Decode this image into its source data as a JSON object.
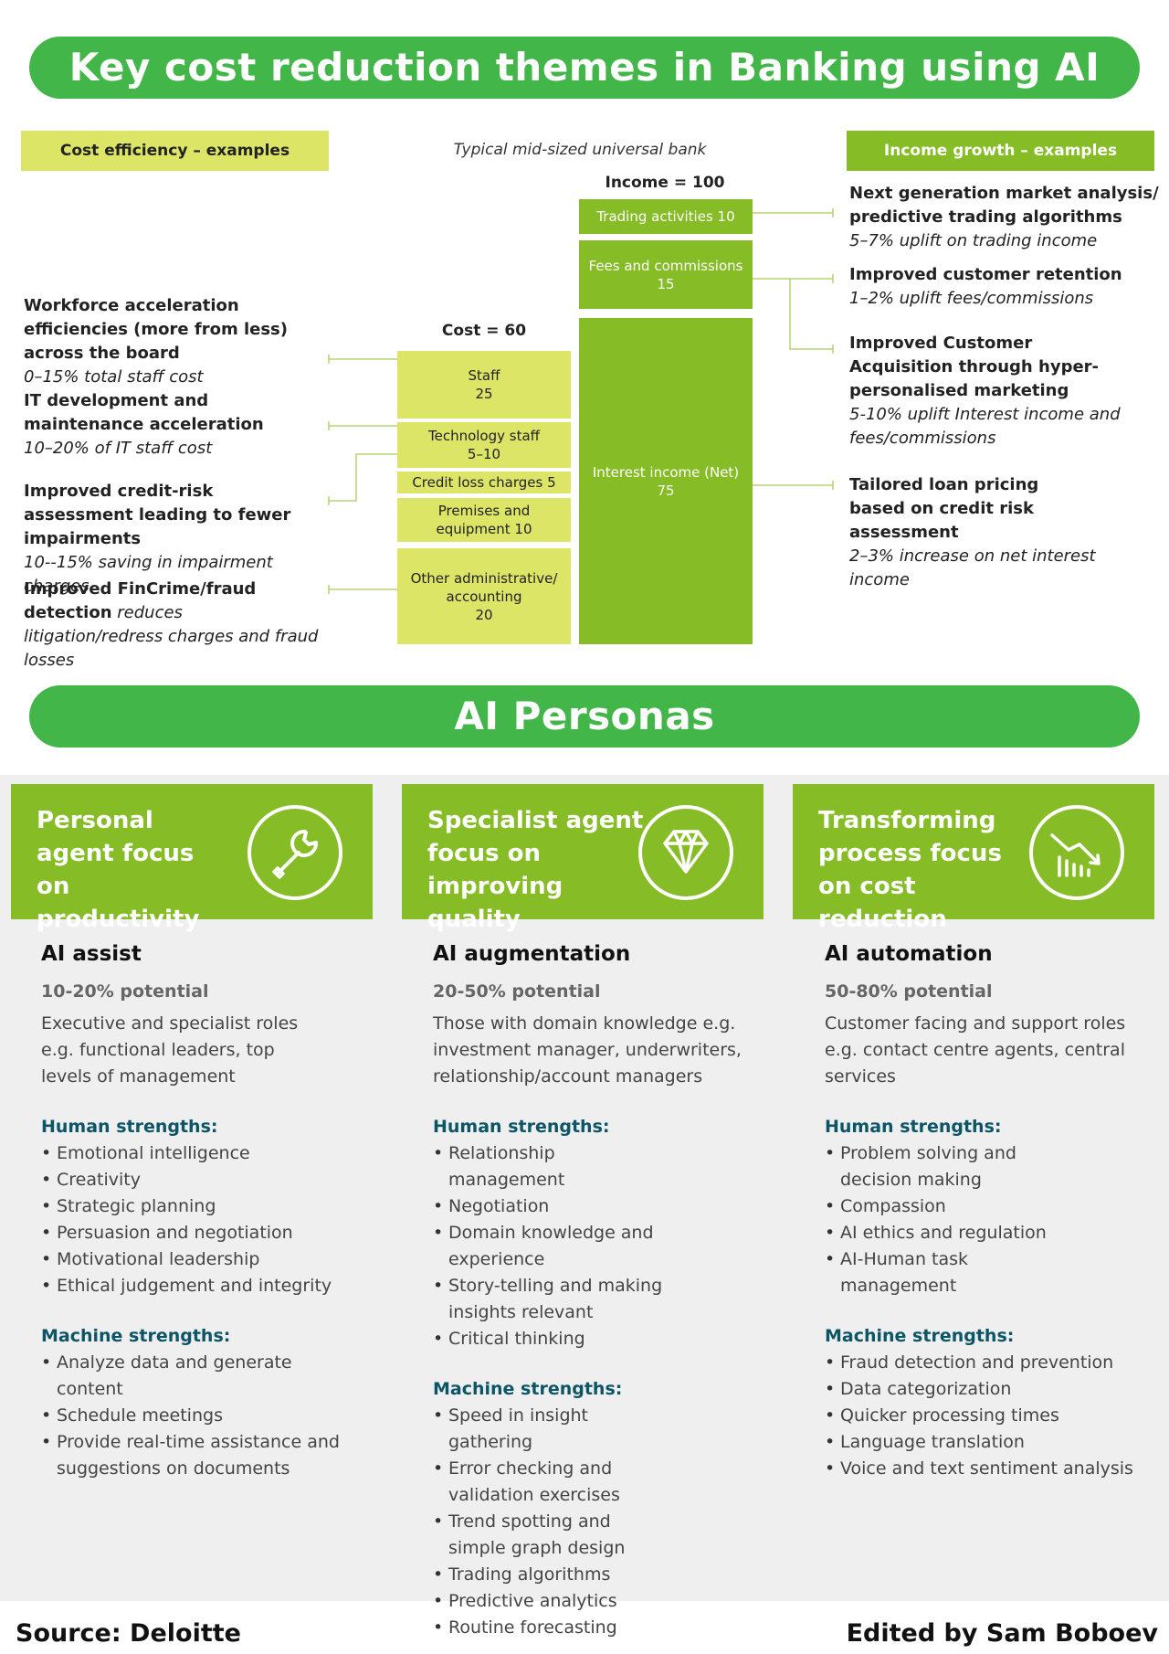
{
  "title": "Key cost reduction themes in Banking using AI",
  "personas_title": "AI Personas",
  "cost_header": "Cost efficiency – examples",
  "income_header": "Income growth – examples",
  "typical_bank": "Typical mid-sized universal bank",
  "income_total": "Income = 100",
  "cost_total": "Cost = 60",
  "cost_bars": [
    {
      "label": "Staff",
      "value": "25"
    },
    {
      "label": "Technology staff",
      "value": "5–10"
    },
    {
      "label": "Credit loss charges 5",
      "value": ""
    },
    {
      "label": "Premises and equipment 10",
      "value": ""
    },
    {
      "label": "Other administrative/ accounting",
      "value": "20"
    }
  ],
  "income_bars": [
    {
      "label": "Trading activities 10",
      "value": ""
    },
    {
      "label": "Fees and commissions 15",
      "value": ""
    },
    {
      "label": "Interest income (Net)",
      "value": "75"
    }
  ],
  "cost_items": [
    {
      "bold": "Workforce acceleration efficiencies (more from less) across the board",
      "italic": "0–15% total staff cost"
    },
    {
      "bold": "IT development and maintenance acceleration",
      "italic": "10–20% of IT staff cost"
    },
    {
      "bold": "Improved credit-risk assessment leading to fewer impairments",
      "italic": "10--15% saving in impairment charges"
    },
    {
      "bold": "Improved FinCrime/fraud detection",
      "italic": "reduces litigation/redress charges and fraud losses"
    }
  ],
  "income_items": [
    {
      "bold": "Next generation market analysis/ predictive trading algorithms",
      "italic": "5–7% uplift on trading income"
    },
    {
      "bold": "Improved customer retention",
      "italic": "1–2% uplift fees/commissions"
    },
    {
      "bold": "Improved Customer Acquisition through hyper-personalised marketing",
      "italic": "5-10% uplift Interest income and fees/commissions"
    },
    {
      "bold": "Tailored loan pricing based on credit risk assessment",
      "italic": "2–3% increase on net interest income"
    }
  ],
  "personas": [
    {
      "head": "Personal agent focus on productivity",
      "icon": "wrench-icon",
      "role": "AI assist",
      "potential": "10-20% potential",
      "desc": "Executive and specialist roles e.g. functional leaders, top levels of management",
      "human_label": "Human strengths:",
      "human": [
        "Emotional intelligence",
        "Creativity",
        "Strategic planning",
        "Persuasion and negotiation",
        "Motivational leadership",
        "Ethical judgement and integrity"
      ],
      "machine_label": "Machine strengths:",
      "machine": [
        "Analyze data and generate content",
        "Schedule meetings",
        "Provide real-time assistance and suggestions on documents"
      ]
    },
    {
      "head": "Specialist agent focus on improving quality",
      "icon": "diamond-icon",
      "role": "AI augmentation",
      "potential": "20-50% potential",
      "desc": "Those with domain knowledge e.g. investment manager, underwriters, relationship/account managers",
      "human_label": "Human strengths:",
      "human": [
        "Relationship management",
        "Negotiation",
        "Domain knowledge and experience",
        "Story-telling and making insights relevant",
        "Critical thinking"
      ],
      "machine_label": "Machine strengths:",
      "machine": [
        "Speed in insight gathering",
        "Error checking and validation exercises",
        "Trend spotting and simple graph design",
        "Trading algorithms",
        "Predictive analytics",
        "Routine forecasting"
      ]
    },
    {
      "head": "Transforming process focus on cost reduction",
      "icon": "declining-chart-icon",
      "role": "AI automation",
      "potential": "50-80% potential",
      "desc": "Customer facing and support roles e.g. contact centre agents, central services",
      "human_label": "Human strengths:",
      "human": [
        "Problem solving and decision making",
        "Compassion",
        "AI ethics and regulation",
        "AI-Human task management"
      ],
      "machine_label": "Machine strengths:",
      "machine": [
        "Fraud detection and prevention",
        "Data categorization",
        "Quicker processing times",
        "Language translation",
        "Voice and text sentiment analysis"
      ]
    }
  ],
  "source": "Source: Deloitte",
  "edited": "Edited by Sam Boboev",
  "colors": {
    "bright_green": "#43b649",
    "green": "#86bc25",
    "light_green": "#dce566",
    "teal": "#0c5567"
  }
}
